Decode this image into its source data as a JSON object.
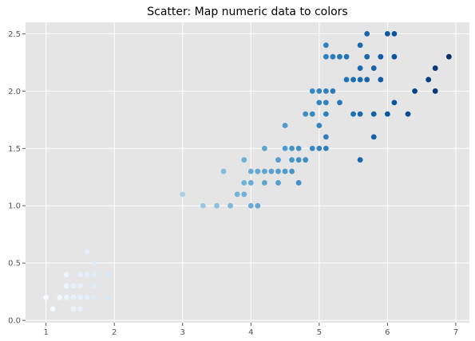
{
  "chart_data": {
    "type": "scatter",
    "title": "Scatter: Map numeric data to colors",
    "xlabel": "",
    "ylabel": "",
    "xlim": [
      0.7,
      7.2
    ],
    "ylim": [
      -0.02,
      2.6
    ],
    "xticks": [
      1,
      2,
      3,
      4,
      5,
      6,
      7
    ],
    "xtick_labels": [
      "1",
      "2",
      "3",
      "4",
      "5",
      "6",
      "7"
    ],
    "yticks": [
      0.0,
      0.5,
      1.0,
      1.5,
      2.0,
      2.5
    ],
    "ytick_labels": [
      "0.0",
      "0.5",
      "1.0",
      "1.5",
      "2.0",
      "2.5"
    ],
    "grid": true,
    "background_color": "#e5e5e5",
    "grid_color": "#ffffff",
    "colormap": "Blues",
    "color_value": "x",
    "color_range": [
      1.0,
      6.9
    ],
    "points": [
      [
        1.0,
        0.2
      ],
      [
        1.1,
        0.1
      ],
      [
        1.2,
        0.2
      ],
      [
        1.3,
        0.2
      ],
      [
        1.3,
        0.3
      ],
      [
        1.3,
        0.4
      ],
      [
        1.4,
        0.1
      ],
      [
        1.4,
        0.2
      ],
      [
        1.4,
        0.3
      ],
      [
        1.5,
        0.1
      ],
      [
        1.5,
        0.2
      ],
      [
        1.5,
        0.3
      ],
      [
        1.5,
        0.4
      ],
      [
        1.6,
        0.2
      ],
      [
        1.6,
        0.4
      ],
      [
        1.6,
        0.6
      ],
      [
        1.7,
        0.2
      ],
      [
        1.7,
        0.3
      ],
      [
        1.7,
        0.4
      ],
      [
        1.7,
        0.5
      ],
      [
        1.9,
        0.2
      ],
      [
        1.9,
        0.4
      ],
      [
        3.0,
        1.1
      ],
      [
        3.3,
        1.0
      ],
      [
        3.5,
        1.0
      ],
      [
        3.6,
        1.3
      ],
      [
        3.7,
        1.0
      ],
      [
        3.8,
        1.1
      ],
      [
        3.9,
        1.1
      ],
      [
        3.9,
        1.2
      ],
      [
        3.9,
        1.4
      ],
      [
        4.0,
        1.0
      ],
      [
        4.0,
        1.2
      ],
      [
        4.0,
        1.3
      ],
      [
        4.1,
        1.0
      ],
      [
        4.1,
        1.3
      ],
      [
        4.2,
        1.2
      ],
      [
        4.2,
        1.3
      ],
      [
        4.2,
        1.5
      ],
      [
        4.3,
        1.3
      ],
      [
        4.4,
        1.2
      ],
      [
        4.4,
        1.3
      ],
      [
        4.4,
        1.4
      ],
      [
        4.5,
        1.3
      ],
      [
        4.5,
        1.5
      ],
      [
        4.5,
        1.7
      ],
      [
        4.6,
        1.3
      ],
      [
        4.6,
        1.4
      ],
      [
        4.6,
        1.5
      ],
      [
        4.7,
        1.2
      ],
      [
        4.7,
        1.4
      ],
      [
        4.7,
        1.5
      ],
      [
        4.8,
        1.4
      ],
      [
        4.8,
        1.8
      ],
      [
        4.9,
        1.5
      ],
      [
        4.9,
        1.8
      ],
      [
        4.9,
        2.0
      ],
      [
        5.0,
        1.5
      ],
      [
        5.0,
        1.7
      ],
      [
        5.0,
        1.9
      ],
      [
        5.0,
        2.0
      ],
      [
        5.1,
        1.5
      ],
      [
        5.1,
        1.6
      ],
      [
        5.1,
        1.8
      ],
      [
        5.1,
        1.9
      ],
      [
        5.1,
        2.0
      ],
      [
        5.1,
        2.3
      ],
      [
        5.1,
        2.4
      ],
      [
        5.2,
        2.0
      ],
      [
        5.2,
        2.3
      ],
      [
        5.3,
        1.9
      ],
      [
        5.3,
        2.3
      ],
      [
        5.4,
        2.1
      ],
      [
        5.4,
        2.3
      ],
      [
        5.5,
        1.8
      ],
      [
        5.5,
        2.1
      ],
      [
        5.6,
        1.4
      ],
      [
        5.6,
        1.8
      ],
      [
        5.6,
        2.1
      ],
      [
        5.6,
        2.2
      ],
      [
        5.6,
        2.4
      ],
      [
        5.7,
        2.1
      ],
      [
        5.7,
        2.3
      ],
      [
        5.7,
        2.5
      ],
      [
        5.8,
        1.6
      ],
      [
        5.8,
        1.8
      ],
      [
        5.8,
        2.2
      ],
      [
        5.9,
        2.1
      ],
      [
        5.9,
        2.3
      ],
      [
        6.0,
        1.8
      ],
      [
        6.0,
        2.5
      ],
      [
        6.1,
        1.9
      ],
      [
        6.1,
        2.3
      ],
      [
        6.1,
        2.5
      ],
      [
        6.3,
        1.8
      ],
      [
        6.4,
        2.0
      ],
      [
        6.6,
        2.1
      ],
      [
        6.7,
        2.0
      ],
      [
        6.7,
        2.2
      ],
      [
        6.9,
        2.3
      ]
    ]
  }
}
